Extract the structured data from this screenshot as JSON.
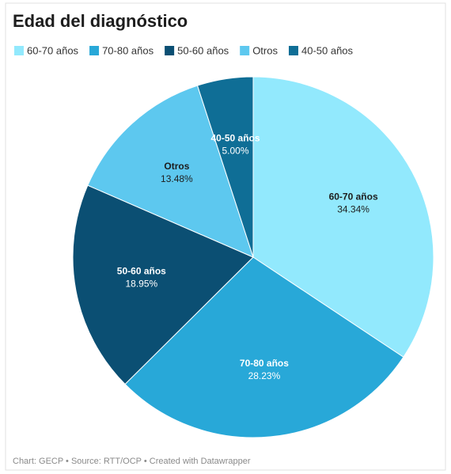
{
  "chart_data": {
    "type": "pie",
    "title": "Edad del diagnóstico",
    "categories": [
      "60-70 años",
      "70-80 años",
      "50-60 años",
      "Otros",
      "40-50 años"
    ],
    "values": [
      34.34,
      28.23,
      18.95,
      13.48,
      5.0
    ],
    "value_labels": [
      "34.34%",
      "28.23%",
      "18.95%",
      "13.48%",
      "5.00%"
    ],
    "colors": [
      "#92e9fd",
      "#28a8d8",
      "#0b4f73",
      "#5dc8ef",
      "#0f6e96"
    ],
    "source": "Chart: GECP • Source: RTT/OCP • Created with Datawrapper"
  }
}
